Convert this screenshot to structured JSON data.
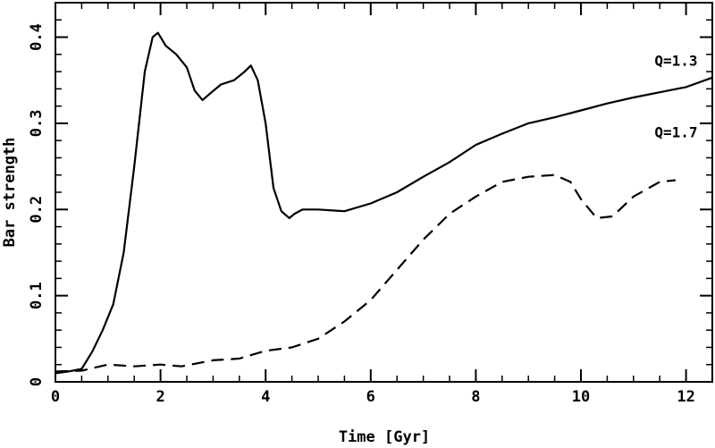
{
  "chart_data": {
    "type": "line",
    "title": "",
    "xlabel": "Time [Gyr]",
    "ylabel": "Bar strength",
    "xlim": [
      0,
      12.5
    ],
    "ylim": [
      0,
      0.44
    ],
    "xticks": [
      0,
      2,
      4,
      6,
      8,
      10,
      12
    ],
    "xtick_labels": [
      "0",
      "2",
      "4",
      "6",
      "8",
      "10",
      "12"
    ],
    "yticks": [
      0,
      0.1,
      0.2,
      0.3,
      0.4
    ],
    "ytick_labels": [
      "0",
      "0.1",
      "0.2",
      "0.3",
      "0.4"
    ],
    "grid": false,
    "legend": "none",
    "annotations": [
      {
        "text": "Q=1.3",
        "x": 11.4,
        "y": 0.367,
        "series": 0
      },
      {
        "text": "Q=1.7",
        "x": 11.4,
        "y": 0.284,
        "series": 1
      }
    ],
    "series": [
      {
        "line_style": "solid",
        "color": "#000000",
        "x": [
          0,
          0.25,
          0.5,
          0.7,
          0.9,
          1.1,
          1.3,
          1.5,
          1.7,
          1.85,
          1.95,
          2.1,
          2.3,
          2.5,
          2.65,
          2.8,
          2.95,
          3.15,
          3.4,
          3.6,
          3.72,
          3.85,
          4.0,
          4.15,
          4.3,
          4.45,
          4.55,
          4.7,
          5.0,
          5.5,
          6.0,
          6.5,
          7.0,
          7.5,
          8.0,
          8.5,
          9.0,
          9.5,
          10.0,
          10.5,
          11.0,
          11.5,
          12.0,
          12.5
        ],
        "y": [
          0.01,
          0.012,
          0.015,
          0.035,
          0.06,
          0.09,
          0.15,
          0.25,
          0.36,
          0.4,
          0.405,
          0.39,
          0.38,
          0.365,
          0.338,
          0.327,
          0.335,
          0.345,
          0.35,
          0.36,
          0.367,
          0.35,
          0.3,
          0.225,
          0.198,
          0.19,
          0.195,
          0.2,
          0.2,
          0.198,
          0.207,
          0.22,
          0.238,
          0.255,
          0.275,
          0.288,
          0.3,
          0.307,
          0.315,
          0.323,
          0.33,
          0.336,
          0.342,
          0.353
        ]
      },
      {
        "line_style": "dashed",
        "color": "#000000",
        "x": [
          0,
          0.5,
          1.0,
          1.5,
          2.0,
          2.4,
          3.0,
          3.5,
          4.0,
          4.5,
          5.0,
          5.5,
          6.0,
          6.5,
          7.0,
          7.5,
          8.0,
          8.5,
          9.0,
          9.5,
          9.8,
          10.0,
          10.3,
          10.6,
          11.0,
          11.5,
          11.8
        ],
        "y": [
          0.012,
          0.013,
          0.02,
          0.018,
          0.02,
          0.018,
          0.025,
          0.027,
          0.036,
          0.04,
          0.05,
          0.07,
          0.095,
          0.13,
          0.165,
          0.195,
          0.215,
          0.232,
          0.238,
          0.24,
          0.232,
          0.212,
          0.19,
          0.192,
          0.215,
          0.232,
          0.234
        ]
      }
    ]
  }
}
